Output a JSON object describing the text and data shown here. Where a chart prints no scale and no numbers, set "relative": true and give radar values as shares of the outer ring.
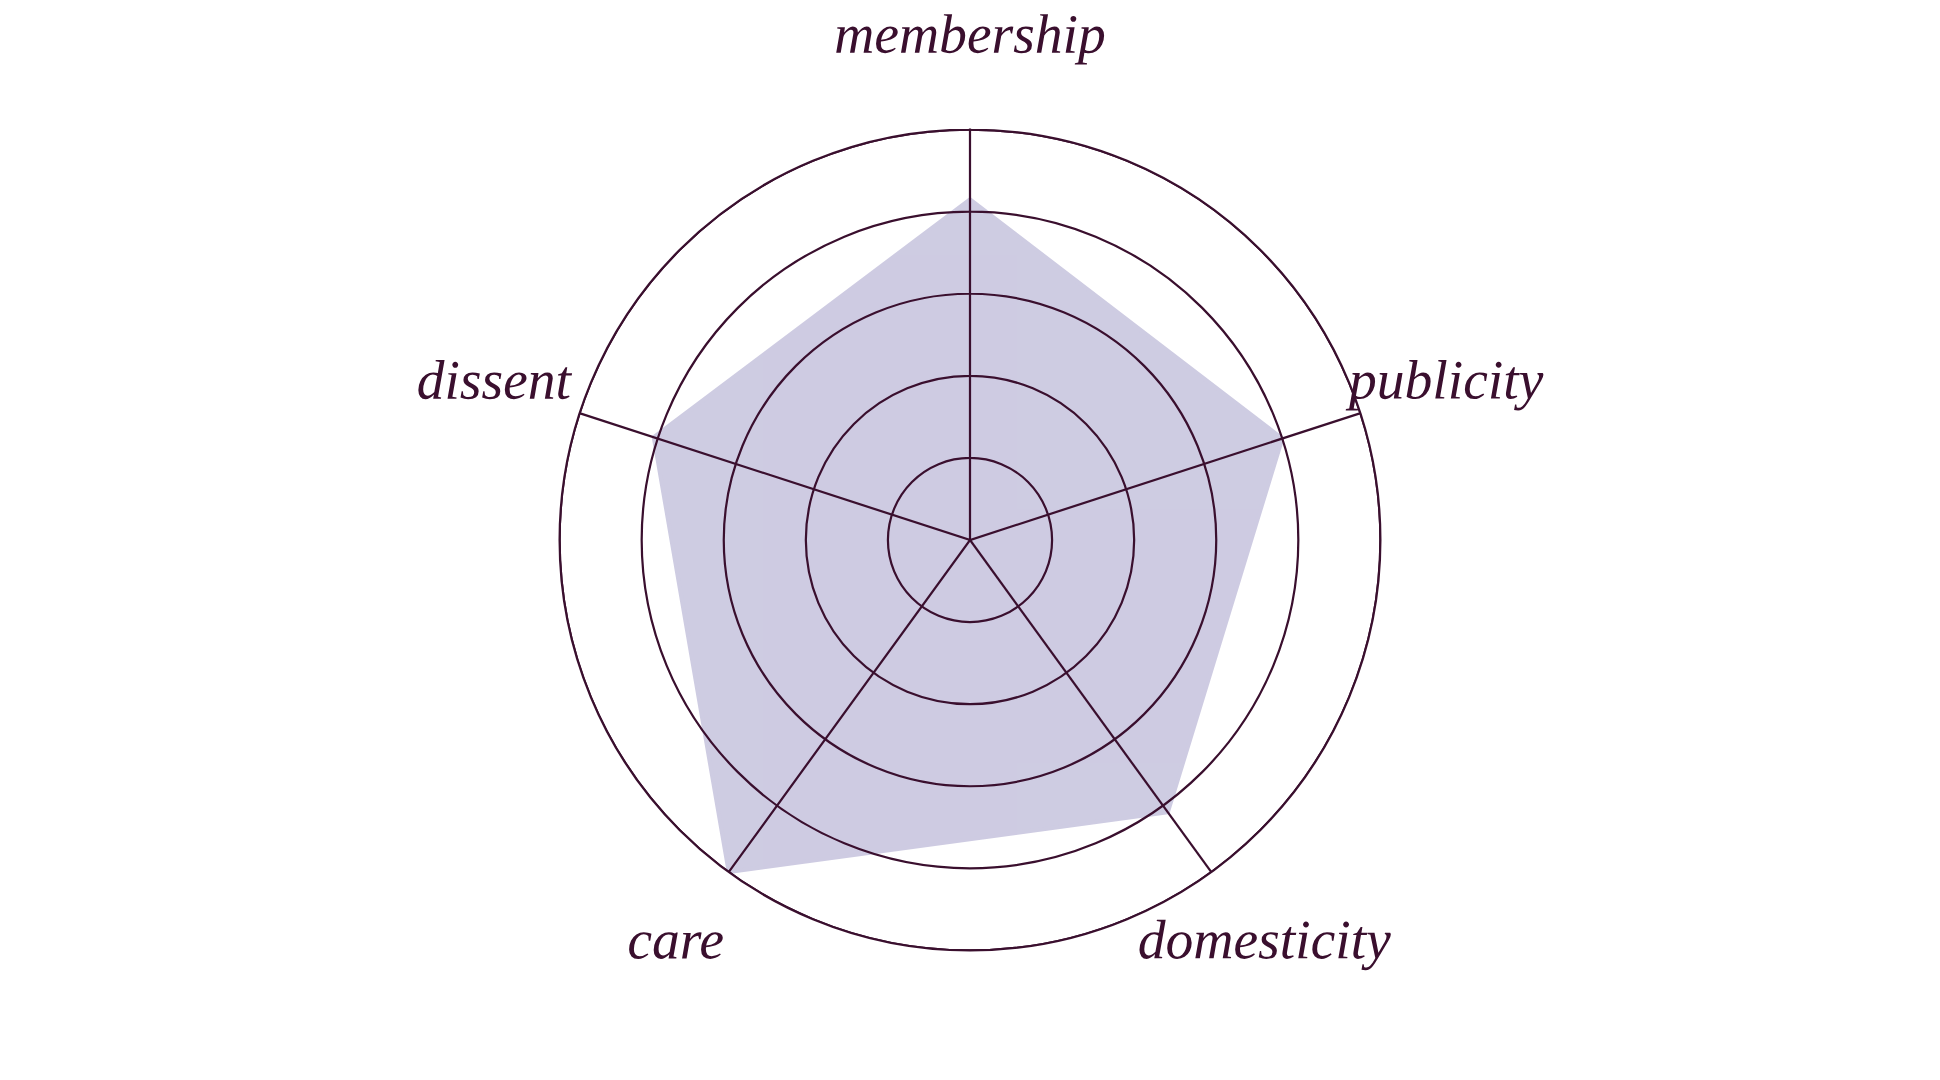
{
  "chart_data": {
    "type": "radar",
    "relative": true,
    "grid": true,
    "categories": [
      "membership",
      "publicity",
      "domesticity",
      "care",
      "dissent"
    ],
    "series": [
      {
        "color": "#c6c3dd",
        "values": [
          0.83,
          0.8,
          0.82,
          1,
          0.81
        ]
      }
    ]
  }
}
